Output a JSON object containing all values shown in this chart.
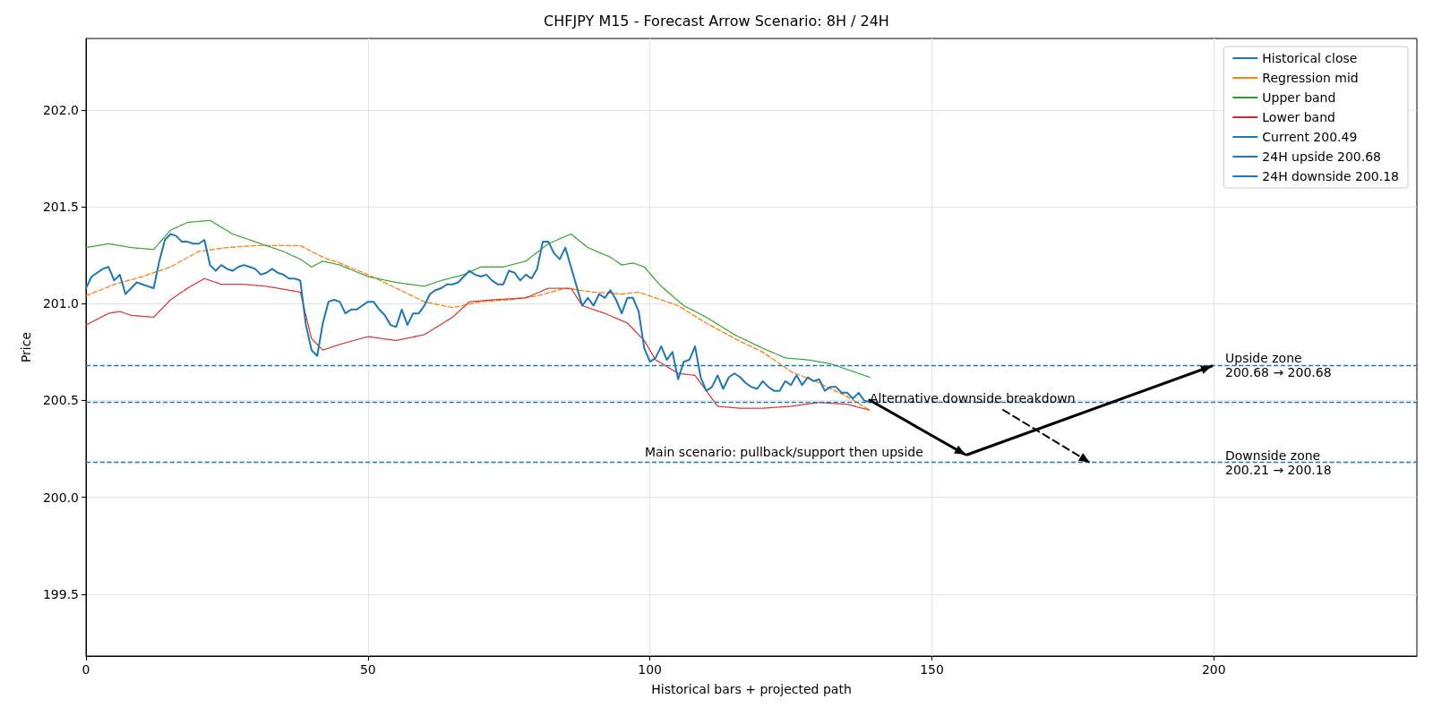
{
  "chart_data": {
    "type": "line",
    "title": "CHFJPY M15 - Forecast Arrow Scenario: 8H / 24H",
    "xlabel": "Historical bars + projected path",
    "ylabel": "Price",
    "xlim": [
      0,
      236
    ],
    "xticks": [
      0,
      50,
      100,
      150,
      200
    ],
    "ylim": [
      199.18,
      202.37
    ],
    "yticks": [
      199.5,
      {
        "value": 200,
        "label": "200.0"
      },
      200.5,
      {
        "value": 201,
        "label": "201.0"
      },
      201.5,
      {
        "value": 202,
        "label": "202.0"
      }
    ],
    "grid": true,
    "legend": "top right",
    "marker": "none",
    "series": [
      {
        "name": "Historical close",
        "color": "#1f77b4",
        "line_style": "solid",
        "x": [
          0,
          1,
          2,
          3,
          4,
          5,
          6,
          7,
          8,
          9,
          10,
          11,
          12,
          13,
          14,
          15,
          16,
          17,
          18,
          19,
          20,
          21,
          22,
          23,
          24,
          25,
          26,
          27,
          28,
          29,
          30,
          31,
          32,
          33,
          34,
          35,
          36,
          37,
          38,
          39,
          40,
          41,
          42,
          43,
          44,
          45,
          46,
          47,
          48,
          49,
          50,
          51,
          52,
          53,
          54,
          55,
          56,
          57,
          58,
          59,
          60,
          61,
          62,
          63,
          64,
          65,
          66,
          67,
          68,
          69,
          70,
          71,
          72,
          73,
          74,
          75,
          76,
          77,
          78,
          79,
          80,
          81,
          82,
          83,
          84,
          85,
          86,
          87,
          88,
          89,
          90,
          91,
          92,
          93,
          94,
          95,
          96,
          97,
          98,
          99,
          100,
          101,
          102,
          103,
          104,
          105,
          106,
          107,
          108,
          109,
          110,
          111,
          112,
          113,
          114,
          115,
          116,
          117,
          118,
          119,
          120,
          121,
          122,
          123,
          124,
          125,
          126,
          127,
          128,
          129,
          130,
          131,
          132,
          133,
          134,
          135,
          136,
          137,
          138,
          139
        ],
        "values": [
          201.08,
          201.14,
          201.16,
          201.18,
          201.19,
          201.12,
          201.15,
          201.05,
          201.08,
          201.11,
          201.1,
          201.09,
          201.08,
          201.22,
          201.33,
          201.36,
          201.35,
          201.32,
          201.32,
          201.31,
          201.31,
          201.33,
          201.2,
          201.17,
          201.2,
          201.18,
          201.17,
          201.19,
          201.2,
          201.19,
          201.18,
          201.15,
          201.16,
          201.18,
          201.16,
          201.15,
          201.13,
          201.13,
          201.12,
          200.89,
          200.76,
          200.73,
          200.9,
          201.01,
          201.02,
          201.01,
          200.95,
          200.97,
          200.97,
          200.99,
          201.01,
          201.01,
          200.97,
          200.94,
          200.89,
          200.88,
          200.97,
          200.89,
          200.95,
          200.95,
          200.99,
          201.05,
          201.07,
          201.08,
          201.1,
          201.1,
          201.11,
          201.14,
          201.17,
          201.15,
          201.14,
          201.15,
          201.12,
          201.1,
          201.1,
          201.17,
          201.16,
          201.12,
          201.15,
          201.13,
          201.18,
          201.32,
          201.32,
          201.26,
          201.23,
          201.29,
          201.19,
          201.09,
          200.99,
          201.03,
          200.99,
          201.05,
          201.03,
          201.07,
          201.02,
          200.95,
          201.03,
          201.03,
          200.96,
          200.77,
          200.7,
          200.72,
          200.78,
          200.71,
          200.75,
          200.61,
          200.7,
          200.71,
          200.78,
          200.62,
          200.55,
          200.57,
          200.63,
          200.56,
          200.62,
          200.64,
          200.62,
          200.59,
          200.57,
          200.56,
          200.6,
          200.57,
          200.55,
          200.55,
          200.6,
          200.58,
          200.63,
          200.58,
          200.62,
          200.6,
          200.61,
          200.55,
          200.57,
          200.57,
          200.54,
          200.54,
          200.51,
          200.54,
          200.5,
          200.49
        ]
      },
      {
        "name": "Regression mid",
        "color": "#ff7f0e",
        "line_style": "dashed",
        "x": [
          0,
          5,
          10,
          15,
          20,
          25,
          30,
          35,
          38,
          40,
          42,
          45,
          50,
          55,
          60,
          65,
          70,
          75,
          80,
          85,
          90,
          95,
          98,
          100,
          105,
          110,
          115,
          120,
          125,
          130,
          135,
          139
        ],
        "values": [
          201.04,
          201.1,
          201.14,
          201.19,
          201.27,
          201.29,
          201.3,
          201.3,
          201.3,
          201.27,
          201.24,
          201.21,
          201.15,
          201.08,
          201.01,
          200.98,
          201.01,
          201.02,
          201.04,
          201.08,
          201.06,
          201.05,
          201.06,
          201.04,
          200.99,
          200.9,
          200.82,
          200.75,
          200.65,
          200.59,
          200.52,
          200.45
        ]
      },
      {
        "name": "Upper band",
        "color": "#2ca02c",
        "line_style": "dotted",
        "x": [
          0,
          4,
          8,
          12,
          15,
          18,
          22,
          26,
          30,
          35,
          38,
          40,
          42,
          45,
          50,
          55,
          60,
          63,
          67,
          70,
          74,
          78,
          82,
          86,
          89,
          93,
          95,
          97,
          99,
          102,
          106,
          110,
          115,
          120,
          124,
          128,
          132,
          136,
          139
        ],
        "values": [
          201.29,
          201.31,
          201.29,
          201.28,
          201.38,
          201.42,
          201.43,
          201.36,
          201.32,
          201.27,
          201.23,
          201.19,
          201.22,
          201.2,
          201.14,
          201.11,
          201.09,
          201.12,
          201.15,
          201.19,
          201.19,
          201.22,
          201.31,
          201.36,
          201.29,
          201.24,
          201.2,
          201.21,
          201.19,
          201.09,
          200.99,
          200.93,
          200.84,
          200.77,
          200.72,
          200.71,
          200.69,
          200.65,
          200.62
        ]
      },
      {
        "name": "Lower band",
        "color": "#d62728",
        "line_style": "dotted",
        "x": [
          0,
          4,
          6,
          8,
          12,
          15,
          18,
          21,
          24,
          28,
          32,
          36,
          38,
          40,
          42,
          45,
          50,
          55,
          60,
          65,
          68,
          72,
          78,
          82,
          86,
          88,
          92,
          96,
          99,
          101,
          105,
          108,
          112,
          116,
          120,
          125,
          130,
          135,
          139
        ],
        "values": [
          200.89,
          200.95,
          200.96,
          200.94,
          200.93,
          201.02,
          201.08,
          201.13,
          201.1,
          201.1,
          201.09,
          201.07,
          201.06,
          200.82,
          200.76,
          200.79,
          200.83,
          200.81,
          200.84,
          200.93,
          201.01,
          201.02,
          201.03,
          201.08,
          201.08,
          200.99,
          200.95,
          200.9,
          200.81,
          200.71,
          200.64,
          200.63,
          200.47,
          200.46,
          200.46,
          200.47,
          200.49,
          200.48,
          200.45
        ]
      }
    ],
    "ref_lines": [
      {
        "axis": "y",
        "value": 200.49,
        "label": "Current 200.49",
        "color": "#1f77b4",
        "line_style": "dashed"
      },
      {
        "axis": "y",
        "value": 200.68,
        "label": "24H upside 200.68",
        "color": "#1f77b4",
        "line_style": "dashed"
      },
      {
        "axis": "y",
        "value": 200.18,
        "label": "24H downside 200.18",
        "color": "#1f77b4",
        "line_style": "dashed"
      }
    ],
    "annotations": [
      "Upside zone\n200.68 → 200.68",
      "Downside zone\n200.21 → 200.18",
      "Main scenario: pullback/support then upside",
      {
        "text": "Alternative downside breakdown",
        "x": 178,
        "y": 200.18
      }
    ]
  }
}
